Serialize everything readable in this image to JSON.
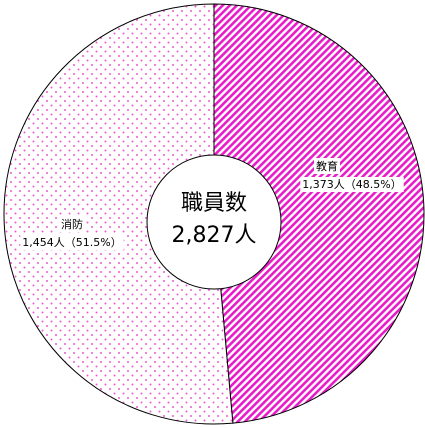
{
  "chart_data": {
    "type": "donut",
    "center_label": "職員数",
    "total_label": "2,827人",
    "categories": [
      "教育",
      "消防"
    ],
    "values": [
      1373,
      1454
    ],
    "value_labels": [
      "1,373人（48.5%）",
      "1,454人（51.5%）"
    ],
    "colors": [
      "#e81cc8",
      "#f05ad2"
    ]
  }
}
